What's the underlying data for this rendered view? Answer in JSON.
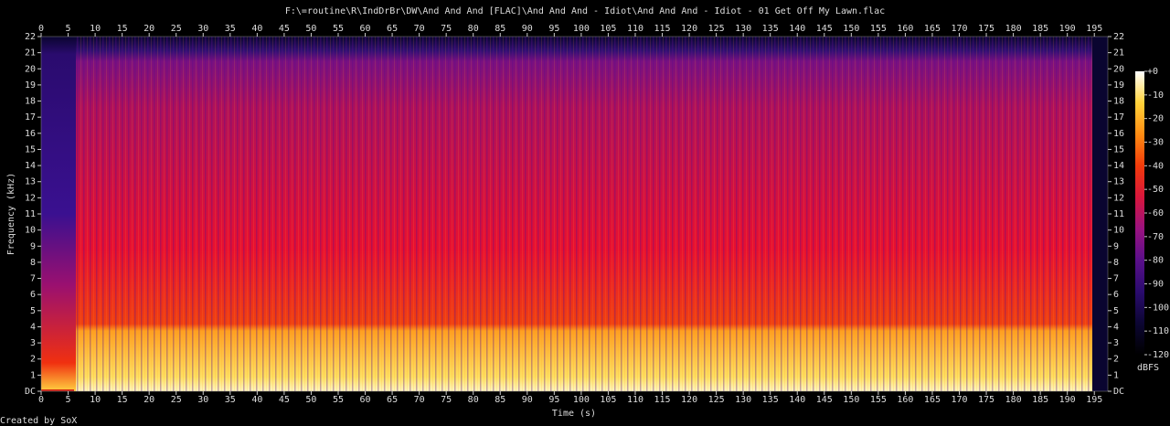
{
  "chart_data": {
    "type": "spectrogram",
    "title": "F:\\=routine\\R\\IndDrBr\\DW\\And And And [FLAC]\\And And And - Idiot\\And And And - Idiot - 01 Get Off My Lawn.flac",
    "x_label": "Time (s)",
    "y_label": "Frequency (kHz)",
    "xlim": [
      0,
      197.5
    ],
    "xticks": [
      0,
      5,
      10,
      15,
      20,
      25,
      30,
      35,
      40,
      45,
      50,
      55,
      60,
      65,
      70,
      75,
      80,
      85,
      90,
      95,
      100,
      105,
      110,
      115,
      120,
      125,
      130,
      135,
      140,
      145,
      150,
      155,
      160,
      165,
      170,
      175,
      180,
      185,
      190,
      195
    ],
    "ylim": [
      0,
      22
    ],
    "yticks": [
      {
        "value": 0,
        "label": "DC"
      },
      1,
      2,
      3,
      4,
      5,
      6,
      7,
      8,
      9,
      10,
      11,
      12,
      13,
      14,
      15,
      16,
      17,
      18,
      19,
      20,
      21,
      22
    ],
    "colorbar": {
      "label": "dBFS",
      "lim": [
        -120,
        0
      ],
      "ticks": [
        {
          "value": 0,
          "label": "+0"
        },
        -10,
        -20,
        -30,
        -40,
        -50,
        -60,
        -70,
        -80,
        -90,
        -100,
        -110,
        -120
      ],
      "colors": [
        "#000000",
        "#0c0633",
        "#2a0b6e",
        "#5a0f8a",
        "#9a1280",
        "#d8163c",
        "#f33a0a",
        "#ff8c12",
        "#ffd23a",
        "#ffffff"
      ]
    }
  },
  "footer": "Created by SoX"
}
